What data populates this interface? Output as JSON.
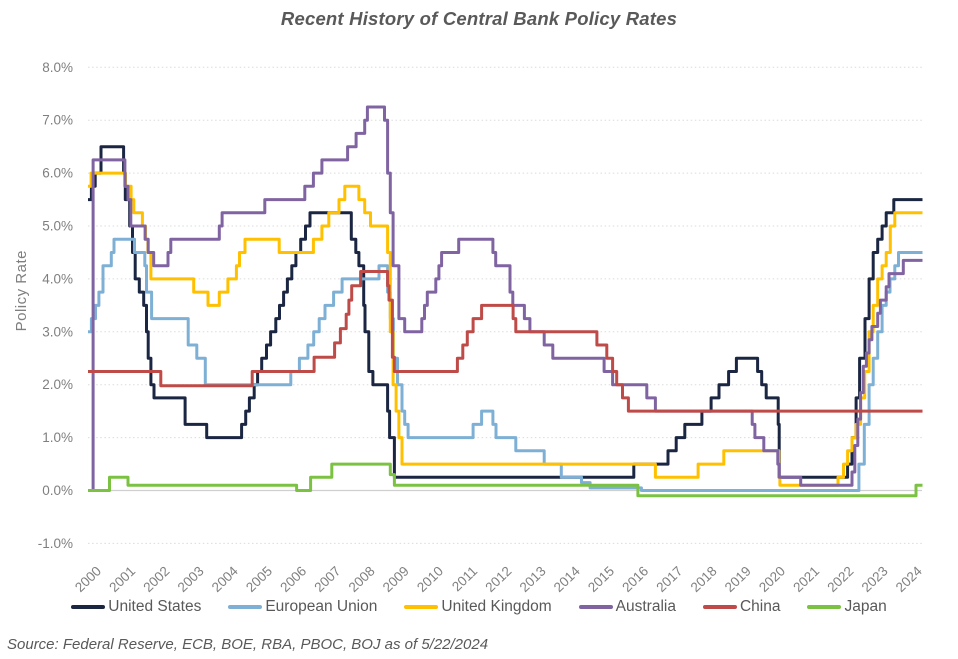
{
  "header": {
    "title": "Recent History of Central Bank Policy Rates"
  },
  "footer": {
    "source_note": "Source: Federal Reserve, ECB, BOE, RBA, PBOC, BOJ as of 5/22/2024"
  },
  "colors": {
    "title_text": "#595959",
    "axis_text": "#7f7f7f",
    "legend_text": "#595959",
    "gridline": "#dbdbdb",
    "zero_axis": "#cfcfcf"
  },
  "chart_data": {
    "type": "line",
    "step": true,
    "title": "Recent History of Central Bank Policy Rates",
    "xlabel": "",
    "ylabel": "Policy Rate",
    "ylim": [
      -1.0,
      8.0
    ],
    "xlim": [
      2000,
      2024.4
    ],
    "grid": "horizontal-dotted",
    "legend_position": "bottom",
    "y_ticks": [
      {
        "label": "8.0%",
        "value": 8
      },
      {
        "label": "7.0%",
        "value": 7
      },
      {
        "label": "6.0%",
        "value": 6
      },
      {
        "label": "5.0%",
        "value": 5
      },
      {
        "label": "4.0%",
        "value": 4
      },
      {
        "label": "3.0%",
        "value": 3
      },
      {
        "label": "2.0%",
        "value": 2
      },
      {
        "label": "1.0%",
        "value": 1
      },
      {
        "label": "0.0%",
        "value": 0
      },
      {
        "label": "-1.0%",
        "value": -1
      }
    ],
    "x_ticks": [
      2000,
      2001,
      2002,
      2003,
      2004,
      2005,
      2006,
      2007,
      2008,
      2009,
      2010,
      2011,
      2012,
      2013,
      2014,
      2015,
      2016,
      2017,
      2018,
      2019,
      2020,
      2021,
      2022,
      2023,
      2024
    ],
    "series": [
      {
        "name": "United States",
        "color": "#1b2642",
        "points": [
          [
            2000.0,
            5.5
          ],
          [
            2000.1,
            5.75
          ],
          [
            2000.21,
            6.0
          ],
          [
            2000.38,
            6.5
          ],
          [
            2001.04,
            6.0
          ],
          [
            2001.09,
            5.5
          ],
          [
            2001.22,
            5.0
          ],
          [
            2001.3,
            4.5
          ],
          [
            2001.38,
            4.0
          ],
          [
            2001.5,
            3.75
          ],
          [
            2001.63,
            3.5
          ],
          [
            2001.71,
            3.0
          ],
          [
            2001.76,
            2.5
          ],
          [
            2001.84,
            2.0
          ],
          [
            2001.93,
            1.75
          ],
          [
            2002.84,
            1.25
          ],
          [
            2003.47,
            1.0
          ],
          [
            2004.49,
            1.25
          ],
          [
            2004.61,
            1.5
          ],
          [
            2004.72,
            1.75
          ],
          [
            2004.86,
            2.0
          ],
          [
            2004.96,
            2.25
          ],
          [
            2005.08,
            2.5
          ],
          [
            2005.22,
            2.75
          ],
          [
            2005.34,
            3.0
          ],
          [
            2005.49,
            3.25
          ],
          [
            2005.6,
            3.5
          ],
          [
            2005.72,
            3.75
          ],
          [
            2005.83,
            4.0
          ],
          [
            2005.96,
            4.25
          ],
          [
            2006.08,
            4.5
          ],
          [
            2006.22,
            4.75
          ],
          [
            2006.36,
            5.0
          ],
          [
            2006.49,
            5.25
          ],
          [
            2007.7,
            4.75
          ],
          [
            2007.83,
            4.5
          ],
          [
            2007.92,
            4.25
          ],
          [
            2008.06,
            3.5
          ],
          [
            2008.1,
            3.0
          ],
          [
            2008.21,
            2.25
          ],
          [
            2008.33,
            2.0
          ],
          [
            2008.76,
            1.5
          ],
          [
            2008.82,
            1.0
          ],
          [
            2008.96,
            0.25
          ],
          [
            2015.96,
            0.5
          ],
          [
            2016.96,
            0.75
          ],
          [
            2017.2,
            1.0
          ],
          [
            2017.45,
            1.25
          ],
          [
            2017.95,
            1.5
          ],
          [
            2018.22,
            1.75
          ],
          [
            2018.45,
            2.0
          ],
          [
            2018.73,
            2.25
          ],
          [
            2018.96,
            2.5
          ],
          [
            2019.58,
            2.25
          ],
          [
            2019.7,
            2.0
          ],
          [
            2019.83,
            1.75
          ],
          [
            2020.18,
            1.25
          ],
          [
            2020.21,
            0.25
          ],
          [
            2022.21,
            0.5
          ],
          [
            2022.34,
            1.0
          ],
          [
            2022.46,
            1.75
          ],
          [
            2022.56,
            2.5
          ],
          [
            2022.72,
            3.25
          ],
          [
            2022.84,
            4.0
          ],
          [
            2022.96,
            4.5
          ],
          [
            2023.09,
            4.75
          ],
          [
            2023.22,
            5.0
          ],
          [
            2023.34,
            5.25
          ],
          [
            2023.56,
            5.5
          ],
          [
            2024.4,
            5.5
          ]
        ]
      },
      {
        "name": "European Union",
        "color": "#7EB0D5",
        "points": [
          [
            2000.0,
            3.0
          ],
          [
            2000.1,
            3.25
          ],
          [
            2000.22,
            3.5
          ],
          [
            2000.32,
            3.75
          ],
          [
            2000.44,
            4.25
          ],
          [
            2000.68,
            4.5
          ],
          [
            2000.76,
            4.75
          ],
          [
            2001.36,
            4.5
          ],
          [
            2001.66,
            4.25
          ],
          [
            2001.71,
            3.75
          ],
          [
            2001.86,
            3.25
          ],
          [
            2002.93,
            2.75
          ],
          [
            2003.18,
            2.5
          ],
          [
            2003.43,
            2.0
          ],
          [
            2005.93,
            2.25
          ],
          [
            2006.18,
            2.5
          ],
          [
            2006.43,
            2.75
          ],
          [
            2006.6,
            3.0
          ],
          [
            2006.76,
            3.25
          ],
          [
            2006.93,
            3.5
          ],
          [
            2007.18,
            3.75
          ],
          [
            2007.43,
            4.0
          ],
          [
            2008.51,
            4.25
          ],
          [
            2008.76,
            3.75
          ],
          [
            2008.84,
            3.25
          ],
          [
            2008.93,
            2.5
          ],
          [
            2009.05,
            2.0
          ],
          [
            2009.18,
            1.5
          ],
          [
            2009.26,
            1.25
          ],
          [
            2009.36,
            1.0
          ],
          [
            2011.26,
            1.25
          ],
          [
            2011.51,
            1.5
          ],
          [
            2011.84,
            1.25
          ],
          [
            2011.93,
            1.0
          ],
          [
            2012.51,
            0.75
          ],
          [
            2013.34,
            0.5
          ],
          [
            2013.84,
            0.25
          ],
          [
            2014.43,
            0.15
          ],
          [
            2014.68,
            0.05
          ],
          [
            2016.18,
            0.0
          ],
          [
            2022.54,
            0.5
          ],
          [
            2022.7,
            1.25
          ],
          [
            2022.84,
            2.0
          ],
          [
            2022.96,
            2.5
          ],
          [
            2023.09,
            3.0
          ],
          [
            2023.22,
            3.5
          ],
          [
            2023.34,
            3.75
          ],
          [
            2023.45,
            4.0
          ],
          [
            2023.59,
            4.25
          ],
          [
            2023.7,
            4.5
          ],
          [
            2024.4,
            4.5
          ]
        ]
      },
      {
        "name": "United Kingdom",
        "color": "#FFC000",
        "points": [
          [
            2000.0,
            5.75
          ],
          [
            2000.09,
            6.0
          ],
          [
            2001.09,
            5.75
          ],
          [
            2001.26,
            5.5
          ],
          [
            2001.34,
            5.25
          ],
          [
            2001.59,
            5.0
          ],
          [
            2001.68,
            4.75
          ],
          [
            2001.75,
            4.5
          ],
          [
            2001.84,
            4.0
          ],
          [
            2003.09,
            3.75
          ],
          [
            2003.51,
            3.5
          ],
          [
            2003.84,
            3.75
          ],
          [
            2004.09,
            4.0
          ],
          [
            2004.34,
            4.25
          ],
          [
            2004.43,
            4.5
          ],
          [
            2004.59,
            4.75
          ],
          [
            2005.59,
            4.5
          ],
          [
            2006.59,
            4.75
          ],
          [
            2006.84,
            5.0
          ],
          [
            2007.04,
            5.25
          ],
          [
            2007.34,
            5.5
          ],
          [
            2007.51,
            5.75
          ],
          [
            2007.92,
            5.5
          ],
          [
            2008.09,
            5.25
          ],
          [
            2008.26,
            5.0
          ],
          [
            2008.76,
            4.5
          ],
          [
            2008.84,
            3.0
          ],
          [
            2008.92,
            2.0
          ],
          [
            2009.01,
            1.5
          ],
          [
            2009.09,
            1.0
          ],
          [
            2009.18,
            0.5
          ],
          [
            2016.59,
            0.25
          ],
          [
            2017.84,
            0.5
          ],
          [
            2018.59,
            0.75
          ],
          [
            2020.2,
            0.25
          ],
          [
            2020.23,
            0.1
          ],
          [
            2021.93,
            0.25
          ],
          [
            2022.09,
            0.5
          ],
          [
            2022.21,
            0.75
          ],
          [
            2022.34,
            1.0
          ],
          [
            2022.46,
            1.25
          ],
          [
            2022.59,
            1.75
          ],
          [
            2022.71,
            2.25
          ],
          [
            2022.84,
            3.0
          ],
          [
            2022.96,
            3.5
          ],
          [
            2023.09,
            4.0
          ],
          [
            2023.22,
            4.25
          ],
          [
            2023.34,
            4.5
          ],
          [
            2023.46,
            5.0
          ],
          [
            2023.59,
            5.25
          ],
          [
            2024.4,
            5.25
          ]
        ]
      },
      {
        "name": "Australia",
        "color": "#8064A2",
        "points": [
          [
            2000.12,
            0.0
          ],
          [
            2000.15,
            6.25
          ],
          [
            2001.08,
            5.75
          ],
          [
            2001.17,
            5.5
          ],
          [
            2001.25,
            5.0
          ],
          [
            2001.67,
            4.75
          ],
          [
            2001.76,
            4.5
          ],
          [
            2001.92,
            4.25
          ],
          [
            2002.34,
            4.5
          ],
          [
            2002.42,
            4.75
          ],
          [
            2003.84,
            5.0
          ],
          [
            2003.92,
            5.25
          ],
          [
            2005.17,
            5.5
          ],
          [
            2006.34,
            5.75
          ],
          [
            2006.59,
            6.0
          ],
          [
            2006.84,
            6.25
          ],
          [
            2007.59,
            6.5
          ],
          [
            2007.84,
            6.75
          ],
          [
            2008.09,
            7.0
          ],
          [
            2008.17,
            7.25
          ],
          [
            2008.67,
            7.0
          ],
          [
            2008.76,
            6.0
          ],
          [
            2008.84,
            5.25
          ],
          [
            2008.92,
            4.25
          ],
          [
            2009.09,
            3.25
          ],
          [
            2009.26,
            3.0
          ],
          [
            2009.76,
            3.25
          ],
          [
            2009.84,
            3.5
          ],
          [
            2009.92,
            3.75
          ],
          [
            2010.17,
            4.0
          ],
          [
            2010.26,
            4.25
          ],
          [
            2010.34,
            4.5
          ],
          [
            2010.84,
            4.75
          ],
          [
            2011.84,
            4.5
          ],
          [
            2011.92,
            4.25
          ],
          [
            2012.34,
            3.75
          ],
          [
            2012.42,
            3.5
          ],
          [
            2012.76,
            3.25
          ],
          [
            2012.92,
            3.0
          ],
          [
            2013.34,
            2.75
          ],
          [
            2013.59,
            2.5
          ],
          [
            2015.09,
            2.25
          ],
          [
            2015.34,
            2.0
          ],
          [
            2016.34,
            1.75
          ],
          [
            2016.59,
            1.5
          ],
          [
            2019.42,
            1.25
          ],
          [
            2019.5,
            1.0
          ],
          [
            2019.76,
            0.75
          ],
          [
            2020.17,
            0.5
          ],
          [
            2020.21,
            0.25
          ],
          [
            2020.84,
            0.1
          ],
          [
            2022.34,
            0.35
          ],
          [
            2022.42,
            0.85
          ],
          [
            2022.51,
            1.35
          ],
          [
            2022.59,
            1.85
          ],
          [
            2022.67,
            2.35
          ],
          [
            2022.76,
            2.6
          ],
          [
            2022.84,
            2.85
          ],
          [
            2022.92,
            3.1
          ],
          [
            2023.09,
            3.35
          ],
          [
            2023.17,
            3.6
          ],
          [
            2023.34,
            3.85
          ],
          [
            2023.42,
            4.1
          ],
          [
            2023.84,
            4.35
          ],
          [
            2024.4,
            4.35
          ]
        ]
      },
      {
        "name": "China",
        "color": "#BE4B48",
        "points": [
          [
            2000.0,
            2.25
          ],
          [
            2002.13,
            1.98
          ],
          [
            2004.8,
            2.25
          ],
          [
            2006.61,
            2.52
          ],
          [
            2007.21,
            2.79
          ],
          [
            2007.38,
            3.06
          ],
          [
            2007.55,
            3.33
          ],
          [
            2007.63,
            3.6
          ],
          [
            2007.71,
            3.87
          ],
          [
            2007.97,
            4.14
          ],
          [
            2008.76,
            3.87
          ],
          [
            2008.8,
            3.6
          ],
          [
            2008.9,
            2.52
          ],
          [
            2008.96,
            2.25
          ],
          [
            2010.8,
            2.5
          ],
          [
            2010.96,
            2.75
          ],
          [
            2011.09,
            3.0
          ],
          [
            2011.26,
            3.25
          ],
          [
            2011.51,
            3.5
          ],
          [
            2012.43,
            3.25
          ],
          [
            2012.51,
            3.0
          ],
          [
            2014.88,
            2.75
          ],
          [
            2015.17,
            2.5
          ],
          [
            2015.34,
            2.25
          ],
          [
            2015.46,
            2.0
          ],
          [
            2015.63,
            1.75
          ],
          [
            2015.8,
            1.5
          ],
          [
            2024.4,
            1.5
          ]
        ]
      },
      {
        "name": "Japan",
        "color": "#7CC242",
        "points": [
          [
            2000.0,
            0.0
          ],
          [
            2000.63,
            0.25
          ],
          [
            2001.17,
            0.1
          ],
          [
            2006.1,
            0.0
          ],
          [
            2006.51,
            0.25
          ],
          [
            2007.13,
            0.5
          ],
          [
            2008.84,
            0.3
          ],
          [
            2008.96,
            0.1
          ],
          [
            2016.08,
            -0.1
          ],
          [
            2024.21,
            0.1
          ],
          [
            2024.4,
            0.1
          ]
        ]
      }
    ]
  }
}
